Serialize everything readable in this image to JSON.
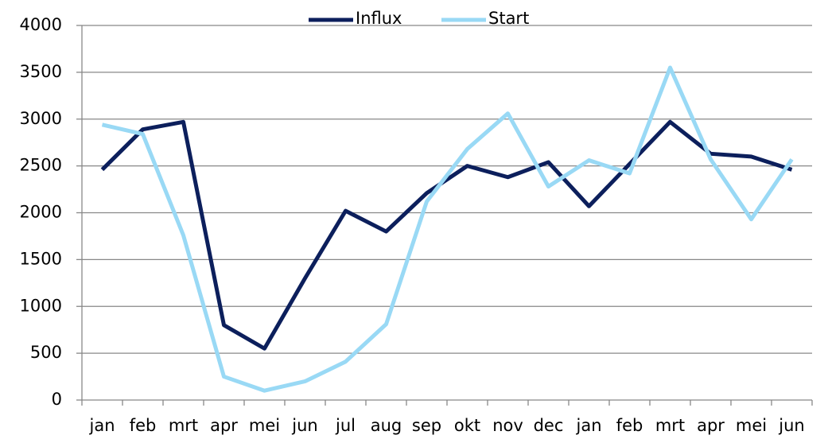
{
  "chart_data": {
    "type": "line",
    "categories": [
      "jan",
      "feb",
      "mrt",
      "apr",
      "mei",
      "jun",
      "jul",
      "aug",
      "sep",
      "okt",
      "nov",
      "dec",
      "jan",
      "feb",
      "mrt",
      "apr",
      "mei",
      "jun"
    ],
    "series": [
      {
        "name": "Influx",
        "color": "#0c1f5c",
        "values": [
          2460,
          2890,
          2970,
          800,
          550,
          1300,
          2020,
          1800,
          2210,
          2500,
          2380,
          2540,
          2070,
          2520,
          2970,
          2630,
          2600,
          2460
        ]
      },
      {
        "name": "Start",
        "color": "#99d9f5",
        "values": [
          2940,
          2840,
          1760,
          250,
          100,
          200,
          410,
          810,
          2120,
          2680,
          3060,
          2280,
          2560,
          2420,
          3550,
          2570,
          1930,
          2570
        ]
      }
    ],
    "ylim": [
      0,
      4000
    ],
    "yticks": [
      0,
      500,
      1000,
      1500,
      2000,
      2500,
      3000,
      3500,
      4000
    ],
    "grid": true,
    "legend": "top"
  }
}
